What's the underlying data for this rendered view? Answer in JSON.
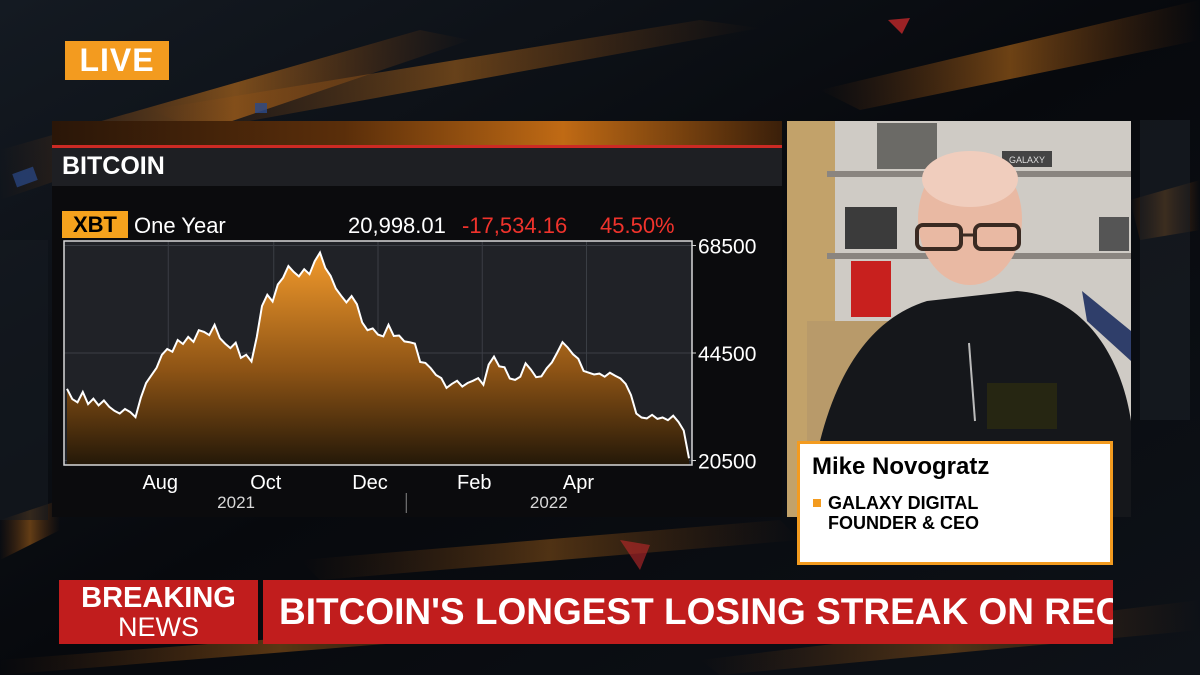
{
  "live_label": "LIVE",
  "panel": {
    "title": "BITCOIN",
    "ticker": "XBT",
    "range": "One Year",
    "price": "20,998.01",
    "change": "-17,534.16",
    "change_pct": "45.50%"
  },
  "chart_data": {
    "type": "area",
    "title": "BITCOIN",
    "x_tick_labels": [
      "Aug",
      "Oct",
      "Dec",
      "Feb",
      "Apr"
    ],
    "year_labels": [
      "2021",
      "2022"
    ],
    "y_ticks": [
      68500,
      44500,
      20500
    ],
    "ylim": [
      19500,
      69500
    ],
    "grid": true,
    "values": [
      36500,
      34200,
      33500,
      35800,
      33100,
      34300,
      32800,
      33900,
      32500,
      31600,
      31000,
      32000,
      31300,
      30200,
      34500,
      37800,
      39500,
      41200,
      44100,
      45400,
      44800,
      47400,
      46500,
      48100,
      47000,
      49600,
      49200,
      48500,
      50800,
      47800,
      46600,
      45600,
      46800,
      43400,
      44100,
      42600,
      48100,
      55000,
      57500,
      56000,
      59800,
      61300,
      63900,
      62600,
      61600,
      63200,
      62100,
      65000,
      66900,
      63500,
      61700,
      58900,
      57300,
      55800,
      57200,
      55400,
      51300,
      49600,
      50000,
      48600,
      48200,
      50800,
      48300,
      48400,
      47100,
      46900,
      46600,
      42500,
      42300,
      41100,
      39600,
      38900,
      36700,
      37600,
      38300,
      37000,
      37800,
      38300,
      38900,
      37400,
      41900,
      43700,
      41500,
      41300,
      38800,
      38500,
      39200,
      42200,
      40800,
      39100,
      39300,
      41100,
      42400,
      44600,
      46900,
      45700,
      44200,
      43200,
      40500,
      40100,
      39700,
      39900,
      39200,
      40100,
      39400,
      38800,
      37600,
      35100,
      31000,
      30100,
      29900,
      30700,
      29800,
      30100,
      29500,
      30500,
      29100,
      27200,
      21000
    ]
  },
  "guest": {
    "name": "Mike Novogratz",
    "title_line1": "GALAXY DIGITAL",
    "title_line2": "FOUNDER & CEO",
    "shelf_sign": "GALAXY"
  },
  "ticker": {
    "breaking_line1": "BREAKING",
    "breaking_line2": "NEWS",
    "headline": "BITCOIN'S LONGEST LOSING STREAK ON RECORD"
  }
}
